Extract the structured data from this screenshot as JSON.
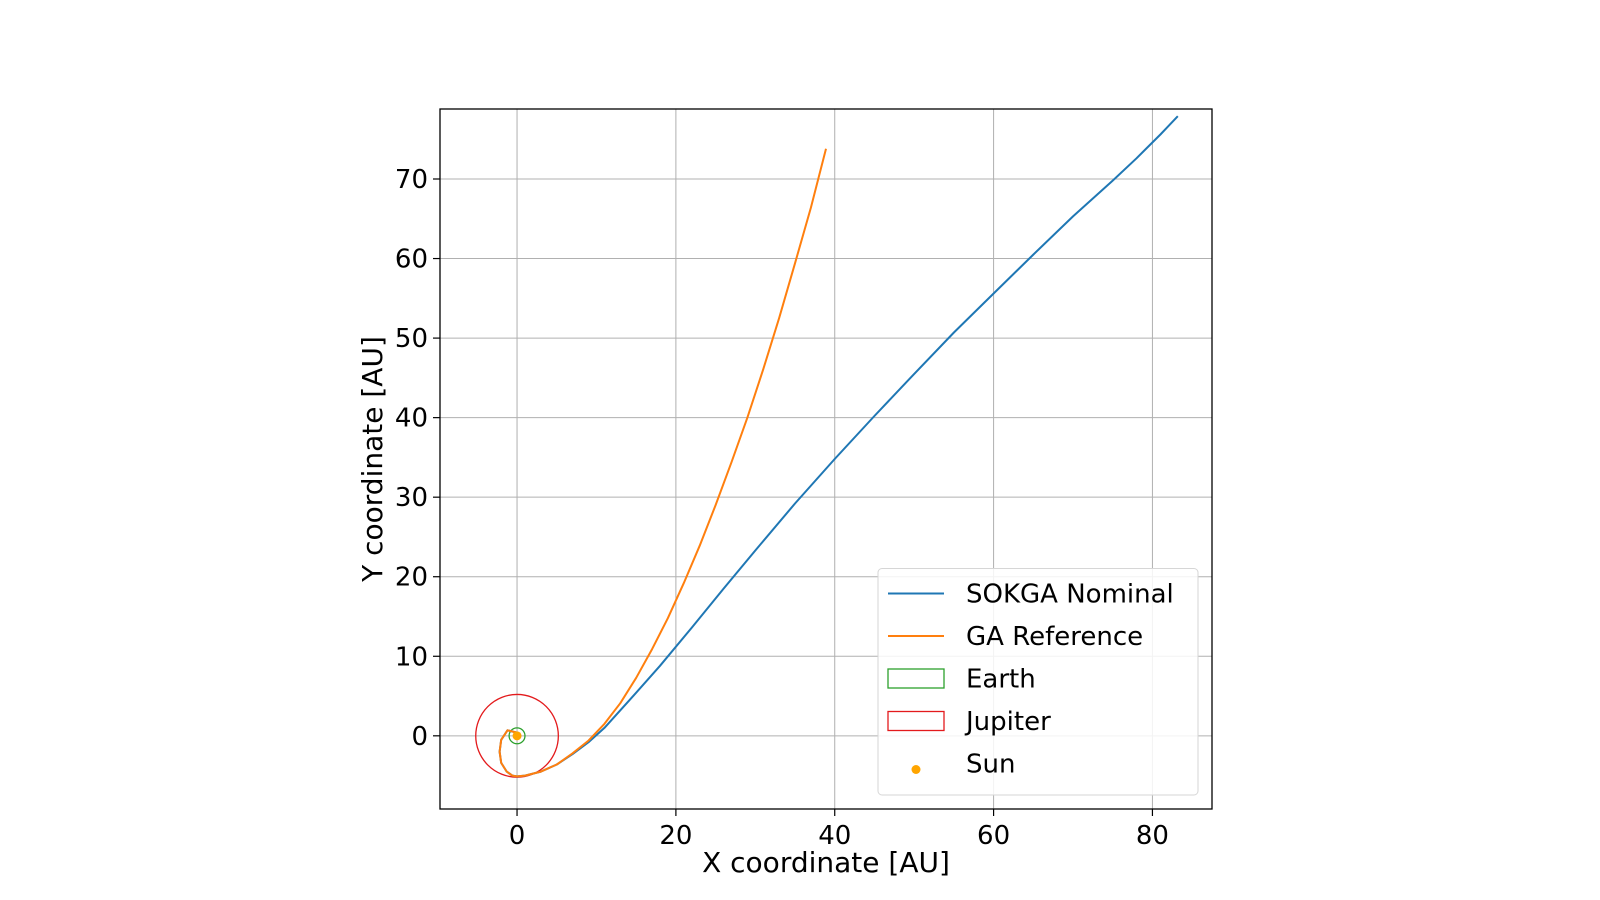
{
  "chart_data": {
    "type": "line",
    "title": "",
    "xlabel": "X coordinate [AU]",
    "ylabel": "Y coordinate [AU]",
    "xlim": [
      -9.7,
      87.5
    ],
    "ylim": [
      -9.2,
      78.8
    ],
    "xticks": [
      0,
      20,
      40,
      60,
      80
    ],
    "yticks": [
      0,
      10,
      20,
      30,
      40,
      50,
      60,
      70
    ],
    "grid": true,
    "legend_position": "lower right",
    "series": [
      {
        "name": "SOKGA Nominal",
        "kind": "line",
        "color": "#1f77b4",
        "x": [
          0,
          -1.2,
          -2.0,
          -2.2,
          -2.0,
          -1.3,
          -0.6,
          0,
          1,
          3,
          5,
          7,
          9,
          11,
          14,
          18,
          22,
          26,
          30,
          35,
          40,
          45,
          50,
          55,
          60,
          65,
          70,
          75,
          78,
          81,
          83.2
        ],
        "y": [
          0.4,
          0.7,
          -0.5,
          -2.0,
          -3.4,
          -4.5,
          -5.0,
          -5.1,
          -5.0,
          -4.5,
          -3.6,
          -2.3,
          -0.8,
          1.0,
          4.3,
          8.8,
          13.6,
          18.5,
          23.3,
          29.2,
          34.8,
          40.2,
          45.5,
          50.7,
          55.6,
          60.5,
          65.3,
          69.8,
          72.6,
          75.6,
          77.9
        ]
      },
      {
        "name": "GA Reference",
        "kind": "line",
        "color": "#ff7f0e",
        "x": [
          0,
          -1.2,
          -2.0,
          -2.2,
          -2.0,
          -1.3,
          -0.6,
          0,
          1,
          3,
          5,
          7,
          9,
          11,
          13,
          15,
          17,
          19,
          21,
          23,
          25,
          27,
          29,
          31,
          33,
          35,
          37,
          38.9
        ],
        "y": [
          0.4,
          0.7,
          -0.5,
          -2.0,
          -3.4,
          -4.5,
          -5.0,
          -5.1,
          -5.0,
          -4.5,
          -3.6,
          -2.2,
          -0.6,
          1.5,
          4.1,
          7.3,
          10.9,
          14.8,
          19.2,
          23.9,
          29.0,
          34.4,
          40.0,
          46.1,
          52.5,
          59.4,
          66.4,
          73.8
        ]
      },
      {
        "name": "Earth",
        "kind": "circle",
        "color": "#2ca02c",
        "center": [
          0,
          0
        ],
        "radius": 1.0
      },
      {
        "name": "Jupiter",
        "kind": "circle",
        "color": "#e31a1c",
        "center": [
          0,
          0
        ],
        "radius": 5.2
      },
      {
        "name": "Sun",
        "kind": "point",
        "color": "#ffa500",
        "x": [
          0
        ],
        "y": [
          0
        ]
      }
    ]
  }
}
